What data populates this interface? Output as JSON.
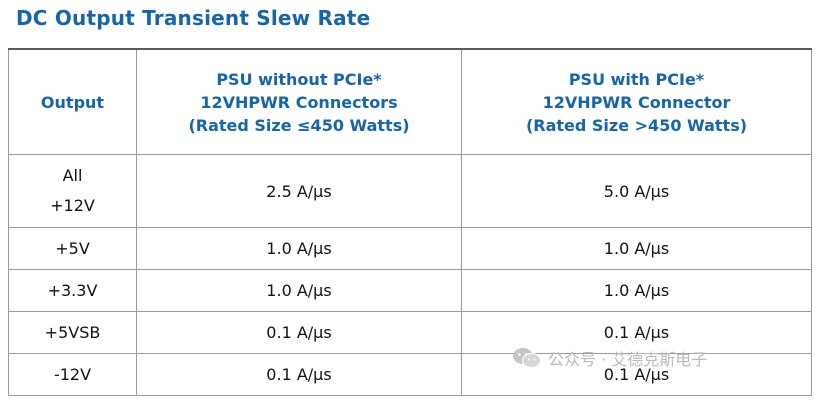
{
  "title": "DC Output Transient Slew Rate",
  "table": {
    "headers": {
      "output": "Output",
      "col1": [
        "PSU without PCIe*",
        "12VHPWR Connectors",
        "(Rated Size ≤450 Watts)"
      ],
      "col2": [
        "PSU with PCIe*",
        "12VHPWR Connector",
        "(Rated Size >450 Watts)"
      ]
    },
    "rows": [
      {
        "output": [
          "All",
          "+12V"
        ],
        "without": "2.5 A/µs",
        "with": "5.0 A/µs"
      },
      {
        "output": [
          "+5V"
        ],
        "without": "1.0 A/µs",
        "with": "1.0 A/µs"
      },
      {
        "output": [
          "+3.3V"
        ],
        "without": "1.0 A/µs",
        "with": "1.0 A/µs"
      },
      {
        "output": [
          "+5VSB"
        ],
        "without": "0.1 A/µs",
        "with": "0.1 A/µs"
      },
      {
        "output": [
          "-12V"
        ],
        "without": "0.1 A/µs",
        "with": "0.1 A/µs"
      }
    ]
  },
  "watermark": {
    "icon": "wechat-logo-icon",
    "text": "公众号 · 艾德克斯电子"
  }
}
